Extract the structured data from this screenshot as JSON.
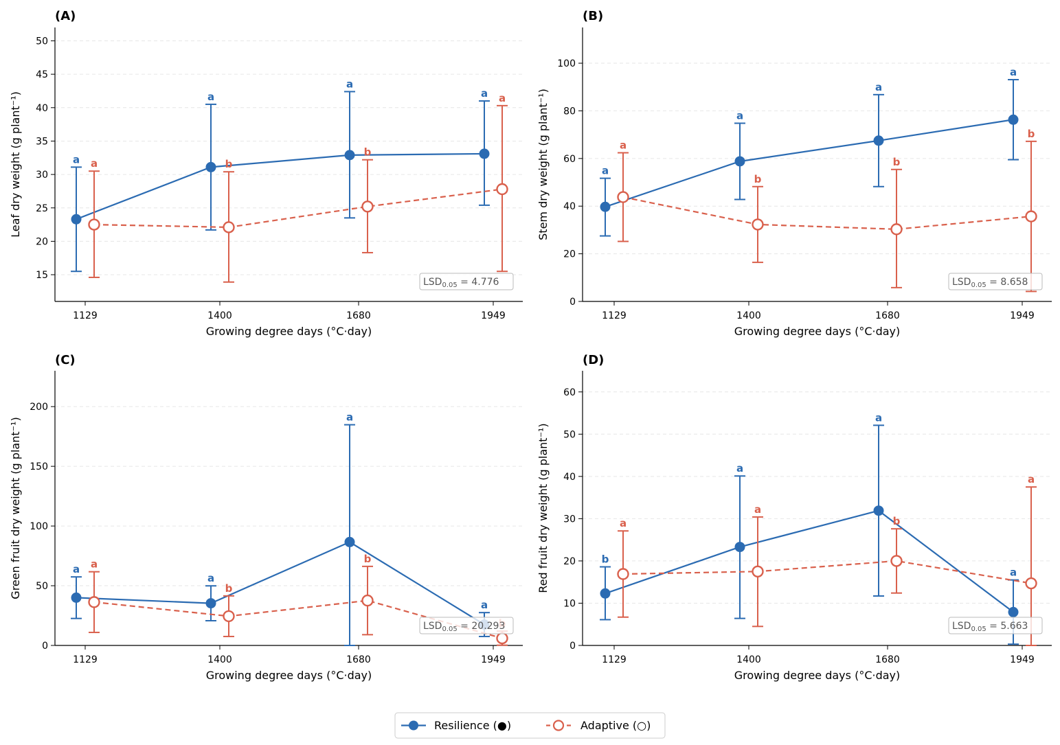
{
  "figure": {
    "x_ticks": [
      "1129",
      "1400",
      "1680",
      "1949"
    ],
    "xlabel": "Growing degree days (°C·day)",
    "colors": {
      "resilience": "#2b6bb2",
      "adaptive": "#d9604c"
    }
  },
  "legend": {
    "placement": "bottom-center",
    "items": [
      {
        "label": "Resilience (●)",
        "series": "resilience",
        "marker": "filled-circle",
        "line": "solid"
      },
      {
        "label": "Adaptive (○)",
        "series": "adaptive",
        "marker": "open-circle",
        "line": "dashed"
      }
    ]
  },
  "chart_data": [
    {
      "type": "line",
      "panel": "(A)",
      "ylabel": "Leaf dry weight (g plant⁻¹)",
      "xlabel": "Growing degree days (°C·day)",
      "x": [
        1129,
        1400,
        1680,
        1949
      ],
      "ylim": [
        11,
        52
      ],
      "yticks": [
        15,
        20,
        25,
        30,
        35,
        40,
        45,
        50
      ],
      "grid": "horizontal-dashed",
      "lsd_text": "4.776",
      "series": [
        {
          "name": "Resilience (●)",
          "key": "resilience",
          "values": [
            23.3,
            31.1,
            32.9,
            33.1
          ],
          "err_low": [
            15.5,
            21.7,
            23.5,
            25.4
          ],
          "err_high": [
            31.1,
            40.5,
            42.4,
            41.0
          ],
          "letters": [
            "a",
            "a",
            "a",
            "a"
          ]
        },
        {
          "name": "Adaptive (○)",
          "key": "adaptive",
          "values": [
            22.5,
            22.1,
            25.2,
            27.8
          ],
          "err_low": [
            14.6,
            13.9,
            18.3,
            15.5
          ],
          "err_high": [
            30.5,
            30.4,
            32.2,
            40.3
          ],
          "letters": [
            "a",
            "b",
            "b",
            "a"
          ]
        }
      ]
    },
    {
      "type": "line",
      "panel": "(B)",
      "ylabel": "Stem dry weight (g plant⁻¹)",
      "xlabel": "Growing degree days (°C·day)",
      "x": [
        1129,
        1400,
        1680,
        1949
      ],
      "ylim": [
        0,
        115
      ],
      "yticks": [
        0,
        20,
        40,
        60,
        80,
        100
      ],
      "grid": "horizontal-dashed",
      "lsd_text": "8.658",
      "series": [
        {
          "name": "Resilience (●)",
          "key": "resilience",
          "values": [
            39.7,
            58.8,
            67.5,
            76.3
          ],
          "err_low": [
            27.5,
            42.8,
            48.2,
            59.5
          ],
          "err_high": [
            51.7,
            74.8,
            86.8,
            93.1
          ],
          "letters": [
            "a",
            "a",
            "a",
            "a"
          ]
        },
        {
          "name": "Adaptive (○)",
          "key": "adaptive",
          "values": [
            43.8,
            32.3,
            30.3,
            35.7
          ],
          "err_low": [
            25.2,
            16.4,
            5.8,
            4.2
          ],
          "err_high": [
            62.4,
            48.2,
            55.4,
            67.2
          ],
          "letters": [
            "a",
            "b",
            "b",
            "b"
          ]
        }
      ]
    },
    {
      "type": "line",
      "panel": "(C)",
      "ylabel": "Green fruit dry weight (g plant⁻¹)",
      "xlabel": "Growing degree days (°C·day)",
      "x": [
        1129,
        1400,
        1680,
        1949
      ],
      "ylim": [
        0,
        230
      ],
      "yticks": [
        0,
        50,
        100,
        150,
        200
      ],
      "grid": "horizontal-dashed",
      "lsd_text": "20.293",
      "series": [
        {
          "name": "Resilience (●)",
          "key": "resilience",
          "values": [
            40.0,
            35.3,
            86.6,
            17.5
          ],
          "err_low": [
            22.6,
            20.7,
            0.0,
            7.5
          ],
          "err_high": [
            57.4,
            49.9,
            184.8,
            27.5
          ],
          "letters": [
            "a",
            "a",
            "a",
            "a"
          ]
        },
        {
          "name": "Adaptive (○)",
          "key": "adaptive",
          "values": [
            36.3,
            24.5,
            37.6,
            6.0
          ],
          "err_low": [
            10.9,
            7.5,
            9.0,
            0.2
          ],
          "err_high": [
            61.7,
            41.5,
            66.2,
            12.0
          ],
          "letters": [
            "a",
            "b",
            "b",
            "b"
          ]
        }
      ]
    },
    {
      "type": "line",
      "panel": "(D)",
      "ylabel": "Red fruit dry weight (g plant⁻¹)",
      "xlabel": "Growing degree days (°C·day)",
      "x": [
        1129,
        1400,
        1680,
        1949
      ],
      "ylim": [
        0,
        65
      ],
      "yticks": [
        0,
        10,
        20,
        30,
        40,
        50,
        60
      ],
      "grid": "horizontal-dashed",
      "lsd_text": "5.663",
      "series": [
        {
          "name": "Resilience (●)",
          "key": "resilience",
          "values": [
            12.3,
            23.3,
            31.9,
            7.9
          ],
          "err_low": [
            6.1,
            6.4,
            11.7,
            0.3
          ],
          "err_high": [
            18.6,
            40.1,
            52.1,
            15.5
          ],
          "letters": [
            "b",
            "a",
            "a",
            "a"
          ]
        },
        {
          "name": "Adaptive (○)",
          "key": "adaptive",
          "values": [
            16.9,
            17.5,
            20.0,
            14.7
          ],
          "err_low": [
            6.7,
            4.5,
            12.4,
            0.0
          ],
          "err_high": [
            27.1,
            30.4,
            27.6,
            37.5
          ],
          "letters": [
            "a",
            "a",
            "b",
            "a"
          ]
        }
      ]
    }
  ]
}
